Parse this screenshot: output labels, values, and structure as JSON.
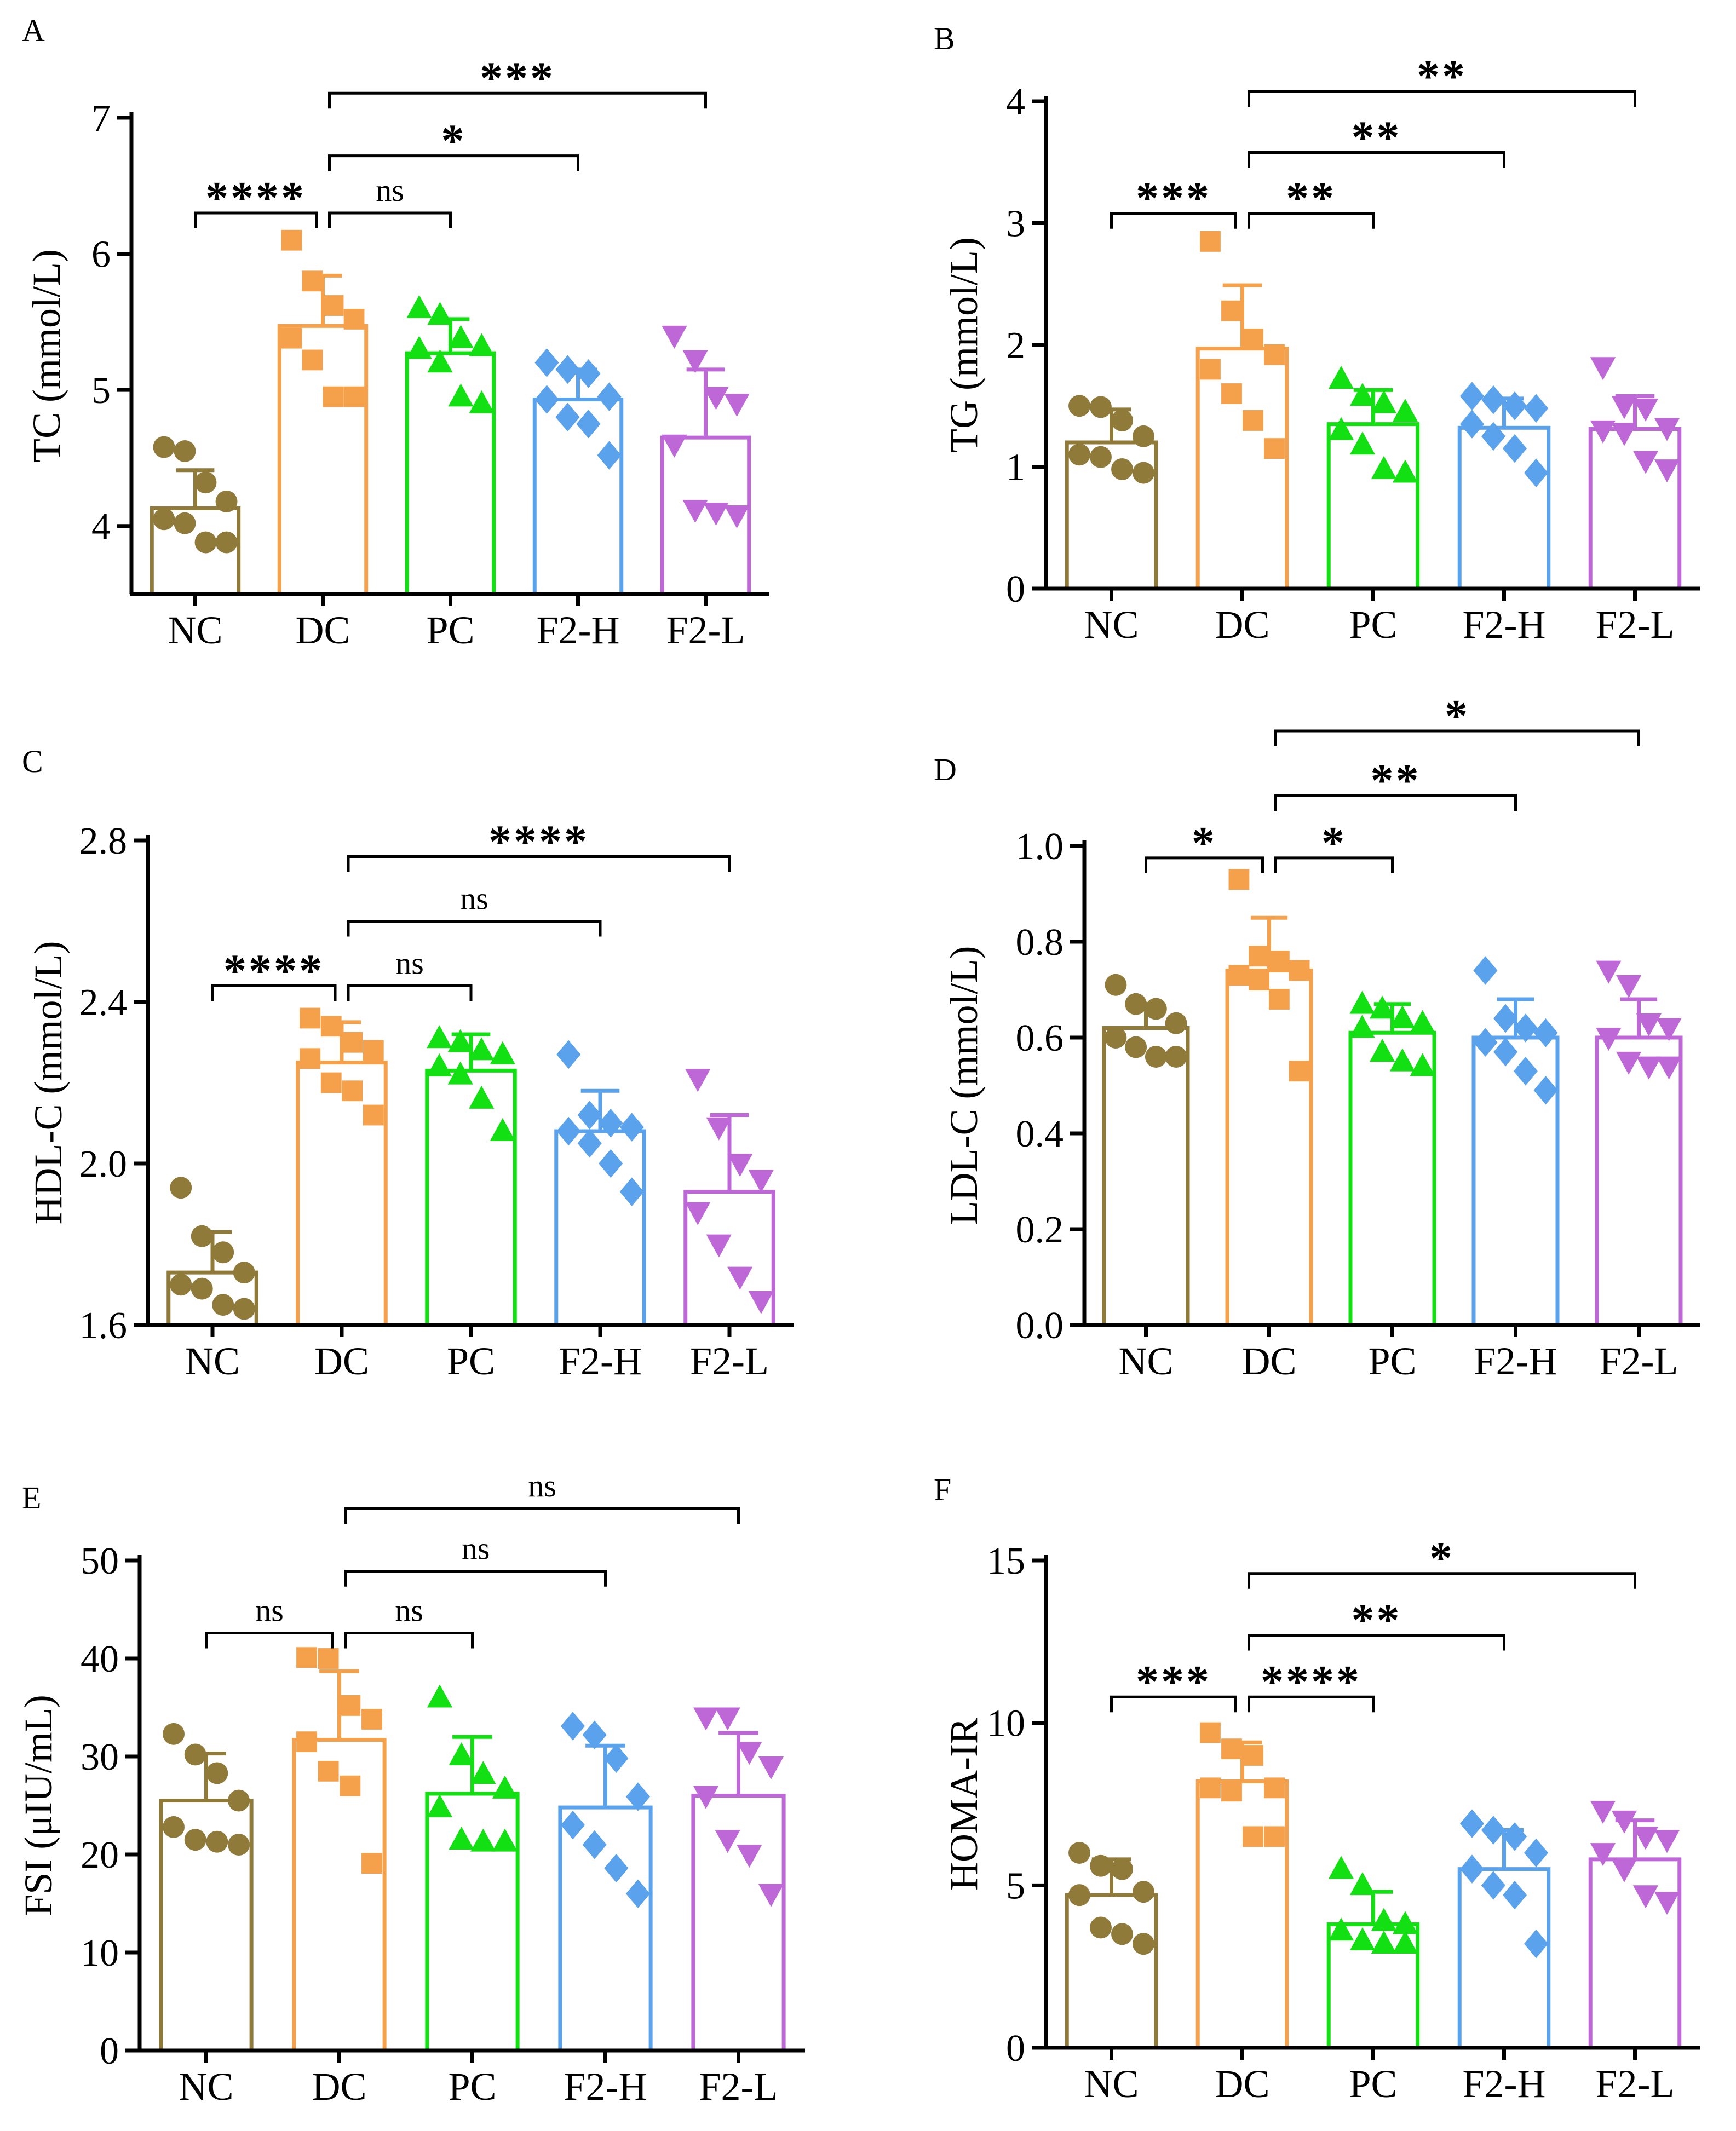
{
  "figure": {
    "colors": {
      "NC": "#8F7A3A",
      "DC": "#F5A04A",
      "PC": "#12E012",
      "F2-H": "#5AA2EC",
      "F2-L": "#BE68D8",
      "axis": "#000000"
    },
    "markers": {
      "NC": "circle",
      "DC": "square",
      "PC": "triangle-up",
      "F2-H": "diamond",
      "F2-L": "triangle-down"
    }
  },
  "chart_data": [
    {
      "panel": "A",
      "type": "bar",
      "ylabel": "TC (mmol/L)",
      "ylim": [
        3.5,
        7
      ],
      "yticks": [
        4,
        5,
        6,
        7
      ],
      "tick_decimals": 0,
      "categories": [
        "NC",
        "DC",
        "PC",
        "F2-H",
        "F2-L"
      ],
      "means": [
        4.13,
        5.47,
        5.27,
        4.93,
        4.65
      ],
      "errors": [
        0.28,
        0.37,
        0.25,
        0.22,
        0.5
      ],
      "points": [
        [
          4.58,
          4.55,
          4.32,
          4.18,
          4.05,
          4.02,
          3.88,
          3.88
        ],
        [
          6.1,
          5.8,
          5.62,
          5.52,
          5.38,
          5.22,
          4.95,
          4.95
        ],
        [
          5.6,
          5.55,
          5.38,
          5.32,
          5.3,
          5.2,
          4.95,
          4.9
        ],
        [
          5.2,
          5.15,
          5.12,
          4.95,
          4.93,
          4.8,
          4.75,
          4.52
        ],
        [
          5.4,
          5.22,
          4.95,
          4.9,
          4.6,
          4.12,
          4.1,
          4.08
        ]
      ],
      "comparisons": [
        {
          "from": 0,
          "to": 1,
          "label": "****",
          "y": 6.3
        },
        {
          "from": 1,
          "to": 2,
          "label": "ns",
          "y": 6.3
        },
        {
          "from": 1,
          "to": 3,
          "label": "*",
          "y": 6.72
        },
        {
          "from": 1,
          "to": 4,
          "label": "***",
          "y": 7.18
        }
      ]
    },
    {
      "panel": "B",
      "type": "bar",
      "ylabel": "TG (mmol/L)",
      "ylim": [
        0,
        4
      ],
      "yticks": [
        0,
        1,
        2,
        3,
        4
      ],
      "tick_decimals": 0,
      "categories": [
        "NC",
        "DC",
        "PC",
        "F2-H",
        "F2-L"
      ],
      "means": [
        1.2,
        1.97,
        1.35,
        1.32,
        1.31
      ],
      "errors": [
        0.27,
        0.52,
        0.28,
        0.24,
        0.27
      ],
      "points": [
        [
          1.5,
          1.49,
          1.38,
          1.25,
          1.1,
          1.08,
          0.98,
          0.95
        ],
        [
          2.85,
          2.28,
          2.05,
          1.92,
          1.8,
          1.6,
          1.38,
          1.15
        ],
        [
          1.72,
          1.58,
          1.52,
          1.45,
          1.3,
          1.18,
          0.98,
          0.95
        ],
        [
          1.58,
          1.55,
          1.5,
          1.48,
          1.35,
          1.25,
          1.15,
          0.95
        ],
        [
          1.82,
          1.5,
          1.48,
          1.32,
          1.3,
          1.28,
          1.05,
          0.98
        ]
      ],
      "comparisons": [
        {
          "from": 0,
          "to": 1,
          "label": "***",
          "y": 3.08
        },
        {
          "from": 1,
          "to": 2,
          "label": "**",
          "y": 3.08
        },
        {
          "from": 1,
          "to": 3,
          "label": "**",
          "y": 3.58
        },
        {
          "from": 1,
          "to": 4,
          "label": "**",
          "y": 4.08
        }
      ]
    },
    {
      "panel": "C",
      "type": "bar",
      "ylabel": "HDL-C (mmol/L)",
      "ylim": [
        1.6,
        2.8
      ],
      "yticks": [
        1.6,
        2.0,
        2.4,
        2.8
      ],
      "tick_decimals": 1,
      "categories": [
        "NC",
        "DC",
        "PC",
        "F2-H",
        "F2-L"
      ],
      "means": [
        1.73,
        2.25,
        2.23,
        2.08,
        1.93
      ],
      "errors": [
        0.1,
        0.1,
        0.09,
        0.1,
        0.19
      ],
      "points": [
        [
          1.94,
          1.82,
          1.78,
          1.73,
          1.7,
          1.69,
          1.65,
          1.64
        ],
        [
          2.36,
          2.34,
          2.3,
          2.28,
          2.26,
          2.2,
          2.18,
          2.12
        ],
        [
          2.31,
          2.3,
          2.28,
          2.27,
          2.24,
          2.22,
          2.16,
          2.08
        ],
        [
          2.27,
          2.12,
          2.1,
          2.09,
          2.08,
          2.05,
          2.0,
          1.93
        ],
        [
          2.21,
          2.09,
          2.0,
          1.96,
          1.88,
          1.8,
          1.72,
          1.66
        ]
      ],
      "comparisons": [
        {
          "from": 0,
          "to": 1,
          "label": "****",
          "y": 2.44
        },
        {
          "from": 1,
          "to": 2,
          "label": "ns",
          "y": 2.44
        },
        {
          "from": 1,
          "to": 3,
          "label": "ns",
          "y": 2.6
        },
        {
          "from": 1,
          "to": 4,
          "label": "****",
          "y": 2.76
        }
      ]
    },
    {
      "panel": "D",
      "type": "bar",
      "ylabel": "LDL-C (mmol/L)",
      "ylim": [
        0,
        1.0
      ],
      "yticks": [
        0.0,
        0.2,
        0.4,
        0.6,
        0.8,
        1.0
      ],
      "tick_decimals": 1,
      "categories": [
        "NC",
        "DC",
        "PC",
        "F2-H",
        "F2-L"
      ],
      "means": [
        0.62,
        0.74,
        0.61,
        0.6,
        0.6
      ],
      "errors": [
        0.05,
        0.11,
        0.06,
        0.08,
        0.08
      ],
      "points": [
        [
          0.71,
          0.67,
          0.66,
          0.63,
          0.6,
          0.58,
          0.56,
          0.56
        ],
        [
          0.93,
          0.77,
          0.76,
          0.74,
          0.73,
          0.72,
          0.68,
          0.53
        ],
        [
          0.67,
          0.66,
          0.64,
          0.63,
          0.62,
          0.57,
          0.55,
          0.54
        ],
        [
          0.74,
          0.64,
          0.62,
          0.61,
          0.59,
          0.57,
          0.53,
          0.49
        ],
        [
          0.74,
          0.71,
          0.63,
          0.62,
          0.6,
          0.55,
          0.54,
          0.54
        ]
      ],
      "comparisons": [
        {
          "from": 0,
          "to": 1,
          "label": "*",
          "y": 0.975
        },
        {
          "from": 1,
          "to": 2,
          "label": "*",
          "y": 0.975
        },
        {
          "from": 1,
          "to": 3,
          "label": "**",
          "y": 1.105
        },
        {
          "from": 1,
          "to": 4,
          "label": "*",
          "y": 1.24
        }
      ]
    },
    {
      "panel": "E",
      "type": "bar",
      "ylabel": "FSI (μIU/mL)",
      "ylim": [
        0,
        50
      ],
      "yticks": [
        0,
        10,
        20,
        30,
        40,
        50
      ],
      "tick_decimals": 0,
      "categories": [
        "NC",
        "DC",
        "PC",
        "F2-H",
        "F2-L"
      ],
      "means": [
        25.5,
        31.7,
        26.2,
        24.8,
        26.0
      ],
      "errors": [
        4.8,
        7.0,
        5.8,
        6.3,
        6.4
      ],
      "points": [
        [
          32.3,
          30.2,
          28.3,
          25.5,
          22.8,
          21.5,
          21.3,
          21.0
        ],
        [
          40.1,
          40.0,
          35.2,
          33.8,
          31.5,
          28.5,
          27.0,
          19.1
        ],
        [
          36.0,
          30.1,
          28.2,
          26.7,
          24.8,
          21.5,
          21.3,
          21.3
        ],
        [
          33.1,
          32.2,
          29.8,
          25.9,
          23.0,
          21.0,
          18.6,
          16.0
        ],
        [
          34.0,
          34.0,
          30.5,
          29.0,
          26.0,
          21.5,
          20.0,
          16.0
        ]
      ],
      "comparisons": [
        {
          "from": 0,
          "to": 1,
          "label": "ns",
          "y": 42.6
        },
        {
          "from": 1,
          "to": 2,
          "label": "ns",
          "y": 42.6
        },
        {
          "from": 1,
          "to": 3,
          "label": "ns",
          "y": 48.9
        },
        {
          "from": 1,
          "to": 4,
          "label": "ns",
          "y": 55.3
        }
      ]
    },
    {
      "panel": "F",
      "type": "bar",
      "ylabel": "HOMA-IR",
      "ylim": [
        0,
        15
      ],
      "yticks": [
        0,
        5,
        10,
        15
      ],
      "tick_decimals": 0,
      "categories": [
        "NC",
        "DC",
        "PC",
        "F2-H",
        "F2-L"
      ],
      "means": [
        4.7,
        8.2,
        3.8,
        5.5,
        5.8
      ],
      "errors": [
        1.1,
        1.2,
        1.0,
        1.2,
        1.2
      ],
      "points": [
        [
          6.0,
          5.6,
          5.5,
          4.8,
          4.7,
          3.7,
          3.5,
          3.2
        ],
        [
          9.7,
          9.2,
          9.0,
          8.0,
          8.0,
          7.9,
          6.5,
          6.5
        ],
        [
          5.5,
          5.0,
          3.9,
          3.8,
          3.6,
          3.3,
          3.2,
          3.2
        ],
        [
          6.9,
          6.7,
          6.5,
          6.0,
          5.5,
          5.0,
          4.7,
          3.2
        ],
        [
          7.3,
          7.0,
          6.5,
          6.4,
          6.0,
          5.5,
          4.7,
          4.5
        ]
      ],
      "comparisons": [
        {
          "from": 0,
          "to": 1,
          "label": "***",
          "y": 10.8
        },
        {
          "from": 1,
          "to": 2,
          "label": "****",
          "y": 10.8
        },
        {
          "from": 1,
          "to": 3,
          "label": "**",
          "y": 12.7
        },
        {
          "from": 1,
          "to": 4,
          "label": "*",
          "y": 14.6
        }
      ]
    }
  ]
}
